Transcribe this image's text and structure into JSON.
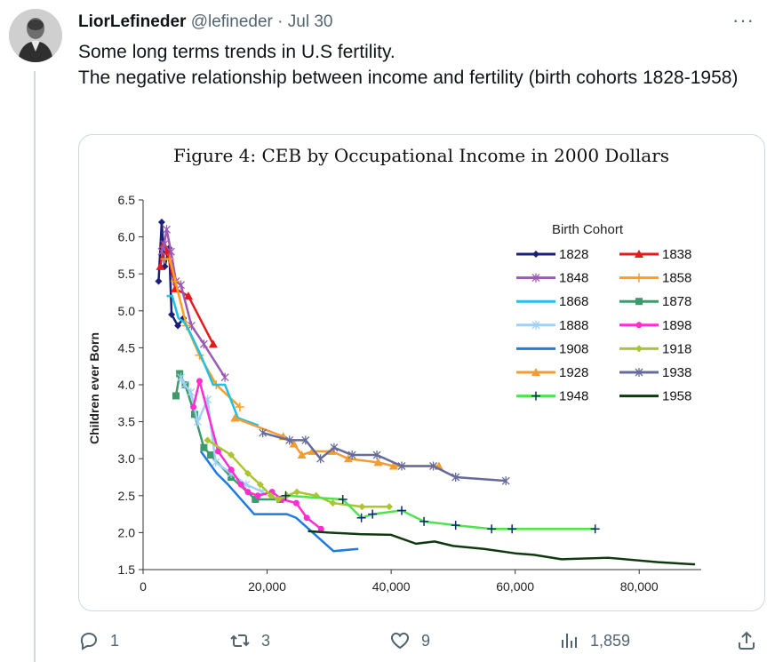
{
  "tweet": {
    "display_name": "LiorLefineder",
    "handle": "@lefineder",
    "separator": "·",
    "date": "Jul 30",
    "more_label": "···",
    "text_line1": "Some long terms trends in U.S fertility.",
    "text_line2": "The negative relationship between income and fertility (birth cohorts 1828-1958)"
  },
  "actions": {
    "replies": "1",
    "retweets": "3",
    "likes": "9",
    "views": "1,859"
  },
  "icons": {
    "reply": "reply-icon",
    "retweet": "retweet-icon",
    "like": "heart-icon",
    "views": "views-icon",
    "share": "share-icon",
    "more": "more-icon"
  },
  "chart_data": {
    "type": "line",
    "title": "Figure 4: CEB by Occupational Income in 2000 Dollars",
    "xlabel": "",
    "ylabel": "Children ever Born",
    "xlim": [
      0,
      90000
    ],
    "ylim": [
      1.5,
      6.5
    ],
    "x_ticks": [
      0,
      20000,
      40000,
      60000,
      80000
    ],
    "x_tick_labels": [
      "0",
      "20,000",
      "40,000",
      "60,000",
      "80,000"
    ],
    "y_ticks": [
      1.5,
      2.0,
      2.5,
      3.0,
      3.5,
      4.0,
      4.5,
      5.0,
      5.5,
      6.0,
      6.5
    ],
    "y_tick_labels": [
      "1.5",
      "2.0",
      "2.5",
      "3.0",
      "3.5",
      "4.0",
      "4.5",
      "5.0",
      "5.5",
      "6.0",
      "6.5"
    ],
    "grid": false,
    "legend_title": "Birth Cohort",
    "legend_position": "top-right",
    "series": [
      {
        "name": "1828",
        "color": "#1a1f78",
        "marker": "diamond",
        "x": [
          2500,
          3000,
          3500,
          4200,
          4600,
          5600,
          6500
        ],
        "y": [
          5.4,
          6.2,
          5.6,
          5.85,
          4.95,
          4.8,
          4.9
        ]
      },
      {
        "name": "1838",
        "color": "#e41a1c",
        "marker": "triangle",
        "x": [
          2800,
          3300,
          3900,
          5200,
          7300,
          11300
        ],
        "y": [
          5.6,
          5.9,
          5.8,
          5.3,
          5.2,
          4.55
        ]
      },
      {
        "name": "1848",
        "color": "#9b59b6",
        "marker": "star",
        "x": [
          3000,
          3400,
          3800,
          4500,
          5300,
          6100,
          7800,
          9800,
          13200
        ],
        "y": [
          5.8,
          5.9,
          6.1,
          5.8,
          5.4,
          5.35,
          4.8,
          4.55,
          4.1
        ]
      },
      {
        "name": "1858",
        "color": "#ff9f1c",
        "marker": "plus",
        "x": [
          3500,
          4300,
          5200,
          7000,
          9100,
          11800,
          15600
        ],
        "y": [
          5.7,
          5.7,
          5.4,
          4.8,
          4.4,
          4.0,
          3.7
        ]
      },
      {
        "name": "1868",
        "color": "#1fc1e6",
        "marker": "line",
        "x": [
          3800,
          4700,
          5700,
          6600,
          7600,
          9300,
          11300,
          13200,
          15300,
          18600
        ],
        "y": [
          5.2,
          5.2,
          4.9,
          4.85,
          4.7,
          4.4,
          4.0,
          4.0,
          3.55,
          3.45
        ]
      },
      {
        "name": "1878",
        "color": "#3d9a6a",
        "marker": "square",
        "x": [
          5300,
          5900,
          6800,
          8300,
          9800,
          10900,
          14200,
          18100,
          22100
        ],
        "y": [
          3.85,
          4.15,
          4.0,
          3.6,
          3.15,
          3.05,
          2.75,
          2.45,
          2.45
        ]
      },
      {
        "name": "1888",
        "color": "#9fd0f5",
        "marker": "star",
        "x": [
          6100,
          6700,
          7700,
          8800,
          10400,
          11700,
          14200,
          16600,
          19300
        ],
        "y": [
          4.1,
          4.0,
          3.9,
          3.5,
          3.8,
          2.95,
          2.8,
          2.65,
          2.55
        ]
      },
      {
        "name": "1898",
        "color": "#ff2ecf",
        "marker": "circle",
        "x": [
          8100,
          9100,
          12100,
          14200,
          15800,
          16900,
          18500,
          20800,
          22400,
          24700,
          26400,
          28700
        ],
        "y": [
          3.7,
          4.05,
          3.1,
          2.85,
          2.65,
          2.55,
          2.5,
          2.55,
          2.45,
          2.4,
          2.2,
          2.05
        ]
      },
      {
        "name": "1908",
        "color": "#1e7be0",
        "marker": "line",
        "x": [
          9300,
          11900,
          13700,
          17900,
          23200,
          24700,
          30700,
          34700
        ],
        "y": [
          3.1,
          2.8,
          2.65,
          2.25,
          2.25,
          2.2,
          1.75,
          1.78
        ]
      },
      {
        "name": "1918",
        "color": "#a9c630",
        "marker": "diamond",
        "x": [
          10400,
          14200,
          16900,
          18900,
          20600,
          21800,
          23200,
          24800,
          27900,
          30600,
          35300,
          39700
        ],
        "y": [
          3.25,
          3.05,
          2.8,
          2.65,
          2.5,
          2.45,
          2.5,
          2.55,
          2.5,
          2.4,
          2.35,
          2.35
        ]
      },
      {
        "name": "1928",
        "color": "#f39c33",
        "marker": "triangle",
        "x": [
          14800,
          22600,
          24300,
          25600,
          27300,
          30400,
          33100,
          37900,
          40400,
          47700
        ],
        "y": [
          3.55,
          3.3,
          3.2,
          3.05,
          3.1,
          3.1,
          3.0,
          2.95,
          2.9,
          2.9
        ]
      },
      {
        "name": "1938",
        "color": "#666b99",
        "marker": "star",
        "x": [
          19300,
          23600,
          26200,
          28600,
          30800,
          33700,
          37700,
          41700,
          46800,
          50400,
          58500
        ],
        "y": [
          3.35,
          3.25,
          3.25,
          3.0,
          3.15,
          3.05,
          3.05,
          2.9,
          2.9,
          2.75,
          2.7
        ]
      },
      {
        "name": "1948",
        "color": "#4fe34f",
        "marker": "plus",
        "x": [
          23000,
          32200,
          35200,
          37000,
          41700,
          45300,
          50400,
          56200,
          59500,
          72900
        ],
        "y": [
          2.5,
          2.45,
          2.2,
          2.25,
          2.3,
          2.15,
          2.1,
          2.05,
          2.05,
          2.05
        ]
      },
      {
        "name": "1958",
        "color": "#0f3a10",
        "marker": "line",
        "x": [
          26600,
          30000,
          35000,
          40000,
          44000,
          47000,
          50000,
          55000,
          60000,
          63000,
          67500,
          75000,
          83000,
          89000
        ],
        "y": [
          2.02,
          2.0,
          1.98,
          1.97,
          1.85,
          1.88,
          1.82,
          1.78,
          1.72,
          1.7,
          1.64,
          1.66,
          1.6,
          1.57
        ]
      }
    ]
  }
}
